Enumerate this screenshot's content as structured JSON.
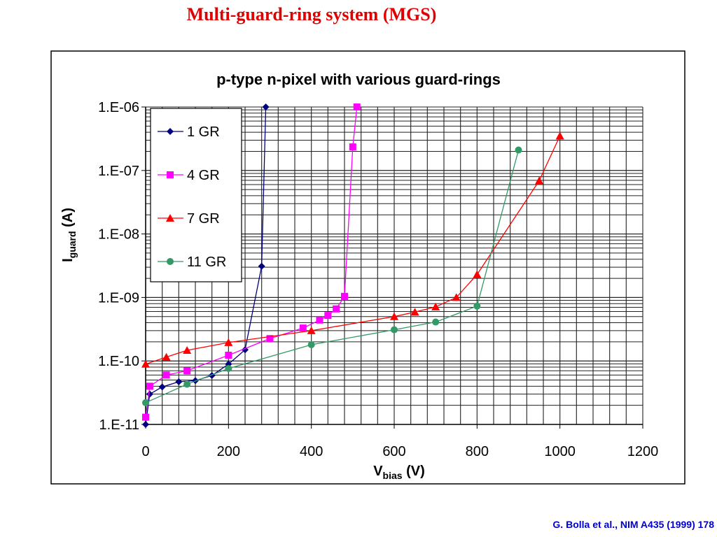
{
  "slide_title": "Multi-guard-ring system (MGS)",
  "citation": "G. Bolla et al., NIM A435 (1999) 178",
  "chart_data": {
    "type": "line",
    "title": "p-type n-pixel with various guard-rings",
    "xlabel_main": "V",
    "xlabel_sub": "bias",
    "xlabel_unit": " (V)",
    "ylabel_main": "I",
    "ylabel_sub": "guard",
    "ylabel_unit": " (A)",
    "xlim": [
      0,
      1200
    ],
    "ylim": [
      1e-11,
      1e-06
    ],
    "yscale": "log",
    "grid": true,
    "legend_position": "top-left",
    "x_ticks": [
      "0",
      "200",
      "400",
      "600",
      "800",
      "1000",
      "1200"
    ],
    "y_ticks": [
      "1.E-11",
      "1.E-10",
      "1.E-09",
      "1.E-08",
      "1.E-07",
      "1.E-06"
    ],
    "series": [
      {
        "name": "1 GR",
        "color": "#000080",
        "marker": "diamond",
        "x": [
          0,
          10,
          40,
          80,
          120,
          160,
          200,
          240,
          280,
          290
        ],
        "y": [
          1e-11,
          3e-11,
          3.9e-11,
          4.7e-11,
          4.9e-11,
          5.9e-11,
          8.9e-11,
          1.5e-10,
          3.1e-09,
          1e-06
        ]
      },
      {
        "name": "4 GR",
        "color": "#ff00ff",
        "marker": "square",
        "x": [
          0,
          10,
          50,
          100,
          200,
          300,
          380,
          420,
          440,
          460,
          480,
          500,
          510
        ],
        "y": [
          1.3e-11,
          4e-11,
          6e-11,
          7e-11,
          1.23e-10,
          2.25e-10,
          3.3e-10,
          4.4e-10,
          5.2e-10,
          6.6e-10,
          1.04e-09,
          2.35e-07,
          1e-06
        ]
      },
      {
        "name": "7 GR",
        "color": "#ff0000",
        "marker": "triangle",
        "x": [
          0,
          50,
          100,
          200,
          400,
          600,
          650,
          700,
          750,
          800,
          950,
          1000
        ],
        "y": [
          8.9e-11,
          1.15e-10,
          1.47e-10,
          1.95e-10,
          3e-10,
          5e-10,
          5.9e-10,
          7.1e-10,
          1e-09,
          2.3e-09,
          6.9e-08,
          3.5e-07
        ]
      },
      {
        "name": "11 GR",
        "color": "#339966",
        "marker": "circle",
        "x": [
          0,
          100,
          200,
          400,
          600,
          700,
          800,
          900
        ],
        "y": [
          2.2e-11,
          4.3e-11,
          7.6e-11,
          1.8e-10,
          3.1e-10,
          4.1e-10,
          7.3e-10,
          2.1e-07
        ]
      }
    ]
  }
}
